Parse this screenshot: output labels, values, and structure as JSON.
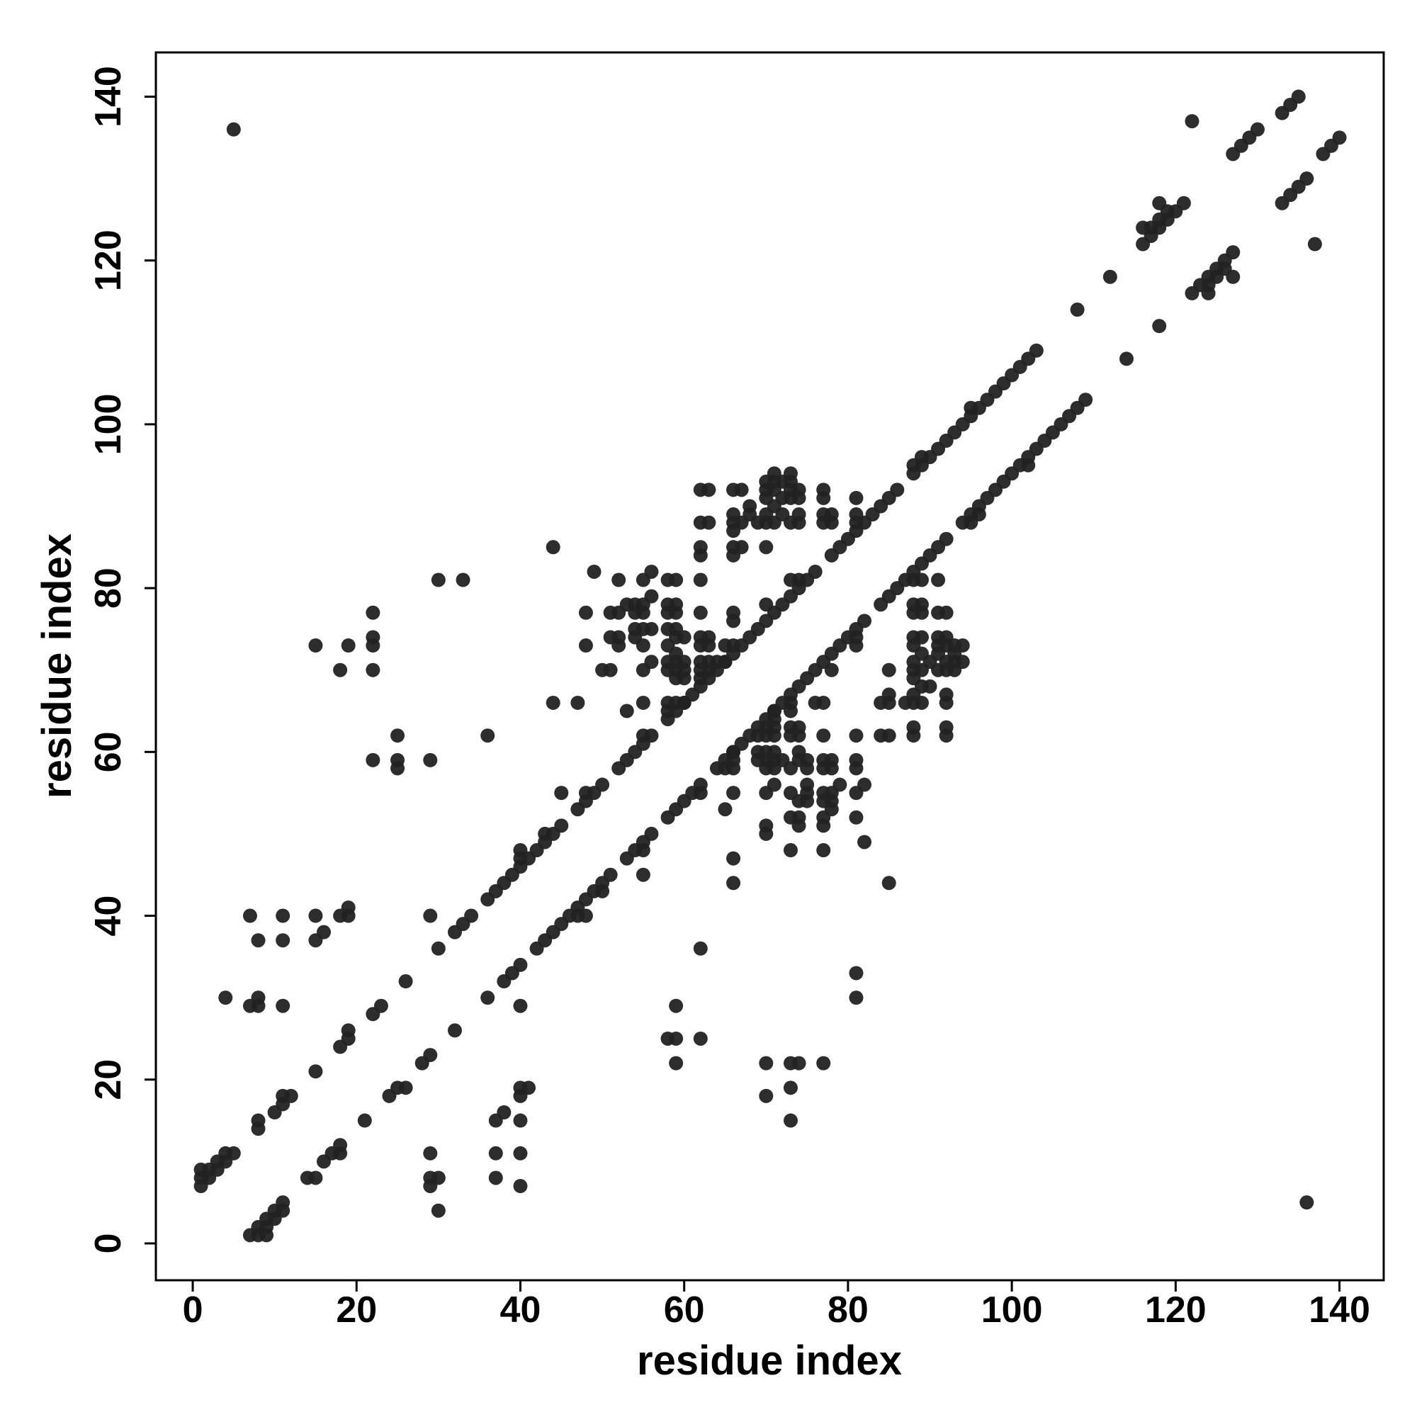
{
  "chart_data": {
    "type": "scatter",
    "xlabel": "residue index",
    "ylabel": "residue index",
    "xlim": [
      -4.5,
      145.4
    ],
    "ylim": [
      -4.5,
      145.4
    ],
    "xticks": [
      0,
      20,
      40,
      60,
      80,
      100,
      120,
      140
    ],
    "yticks": [
      0,
      20,
      40,
      60,
      80,
      100,
      120,
      140
    ],
    "series": [
      {
        "color": "#222222",
        "x": [
          1,
          1,
          1,
          2,
          2,
          3,
          3,
          4,
          4,
          5,
          8,
          8,
          10,
          11,
          11,
          12,
          15,
          18,
          19,
          19,
          22,
          23,
          26,
          30,
          32,
          33,
          34,
          36,
          37,
          38,
          39,
          40,
          40,
          40,
          41,
          42,
          43,
          43,
          44,
          45,
          45,
          47,
          48,
          48,
          49,
          50,
          52,
          53,
          54,
          55,
          55,
          56,
          58,
          59,
          60,
          61,
          62,
          63,
          64,
          65,
          66,
          67,
          68,
          69,
          70,
          71,
          72,
          73,
          74,
          75,
          76,
          78,
          79,
          80,
          81,
          82,
          83,
          84,
          85,
          86,
          88,
          88,
          89,
          89,
          90,
          91,
          92,
          93,
          94,
          95,
          95,
          96,
          97,
          98,
          99,
          100,
          101,
          102,
          103,
          108,
          112,
          116,
          116,
          117,
          117,
          118,
          118,
          118,
          119,
          119,
          120,
          121,
          122,
          127,
          128,
          129,
          130,
          133,
          134,
          135,
          5,
          30,
          33,
          15,
          19,
          18,
          22,
          22,
          22,
          22,
          25,
          22,
          25,
          25,
          29,
          36,
          44,
          49,
          44,
          47,
          7,
          8,
          11,
          11,
          15,
          15,
          16,
          18,
          19,
          19,
          4,
          7,
          8,
          8,
          11,
          29,
          48,
          52,
          48,
          51,
          52,
          51,
          52,
          50,
          53,
          54,
          55,
          56,
          56,
          55,
          54,
          55,
          56,
          55,
          55,
          56,
          53,
          55,
          58,
          58,
          59,
          58,
          59,
          58,
          59,
          58,
          59,
          60,
          58,
          59,
          60,
          58,
          59,
          60,
          58,
          59,
          58,
          60,
          62,
          62,
          63,
          62,
          62,
          62,
          62,
          62,
          63,
          62,
          63,
          62,
          63,
          62,
          63,
          62,
          63,
          66,
          67,
          66,
          66,
          67,
          66,
          66,
          67,
          66,
          68,
          68,
          69,
          70,
          70,
          70,
          70,
          70,
          70,
          71,
          71,
          71,
          71,
          71,
          72,
          72,
          72,
          73,
          73,
          73,
          73,
          73,
          74,
          74,
          74,
          74,
          77,
          77,
          77,
          77,
          78,
          78,
          81,
          81,
          81,
          66,
          65,
          66,
          64,
          65,
          70,
          73,
          74,
          51,
          52,
          54,
          54,
          55,
          59,
          59,
          60,
          66,
          59,
          7,
          8,
          9,
          8,
          9,
          9,
          10,
          10,
          11,
          11,
          14,
          15,
          16,
          17,
          18,
          18,
          21,
          24,
          25,
          26,
          28,
          29,
          32,
          36,
          38,
          39,
          40,
          42,
          43,
          44,
          45,
          46,
          47,
          48,
          47,
          48,
          49,
          50,
          50,
          51,
          55,
          53,
          54,
          55,
          55,
          56,
          58,
          59,
          60,
          61,
          62,
          62,
          64,
          65,
          66,
          67,
          68,
          69,
          70,
          71,
          72,
          73,
          74,
          75,
          76,
          77,
          78,
          79,
          80,
          81,
          82,
          84,
          85,
          86,
          87,
          88,
          89,
          90,
          91,
          92,
          94,
          95,
          95,
          96,
          96,
          97,
          98,
          99,
          100,
          101,
          102,
          102,
          103,
          104,
          105,
          106,
          107,
          108,
          109,
          114,
          118,
          122,
          124,
          123,
          124,
          124,
          125,
          127,
          125,
          126,
          126,
          127,
          137,
          133,
          134,
          135,
          136,
          138,
          139,
          140,
          136,
          81,
          81,
          73,
          73,
          70,
          77,
          74,
          73,
          70,
          62,
          59,
          59,
          58,
          59,
          62,
          85,
          82,
          66,
          66,
          40,
          37,
          40,
          37,
          40,
          37,
          38,
          40,
          40,
          41,
          30,
          29,
          29,
          30,
          29,
          40,
          77,
          81,
          73,
          77,
          77,
          74,
          74,
          70,
          78,
          78,
          81,
          82,
          79,
          77,
          75,
          75,
          75,
          73,
          70,
          71,
          65,
          66,
          81,
          78,
          78,
          77,
          77,
          75,
          75,
          73,
          74,
          74,
          71,
          71,
          71,
          70,
          69,
          70,
          66,
          66,
          65,
          66,
          92,
          88,
          88,
          85,
          84,
          81,
          77,
          74,
          74,
          73,
          73,
          71,
          71,
          70,
          70,
          69,
          92,
          92,
          92,
          89,
          88,
          88,
          87,
          85,
          85,
          84,
          90,
          89,
          88,
          89,
          88,
          85,
          91,
          92,
          93,
          94,
          93,
          92,
          90,
          88,
          93,
          91,
          89,
          94,
          93,
          92,
          91,
          88,
          92,
          91,
          89,
          88,
          92,
          91,
          89,
          88,
          89,
          88,
          91,
          89,
          88,
          77,
          73,
          73,
          71,
          71,
          78,
          81,
          81,
          70,
          73,
          74,
          77,
          78,
          70,
          72,
          69,
          76,
          81
        ],
        "values": [
          7,
          8,
          9,
          8,
          9,
          9,
          10,
          10,
          11,
          11,
          14,
          15,
          16,
          17,
          18,
          18,
          21,
          24,
          25,
          26,
          28,
          29,
          32,
          36,
          38,
          39,
          40,
          42,
          43,
          44,
          45,
          46,
          47,
          48,
          47,
          48,
          49,
          50,
          50,
          51,
          55,
          53,
          54,
          55,
          55,
          56,
          58,
          59,
          60,
          61,
          62,
          62,
          64,
          65,
          66,
          67,
          68,
          69,
          70,
          71,
          72,
          73,
          74,
          75,
          76,
          77,
          78,
          79,
          80,
          81,
          82,
          84,
          85,
          86,
          87,
          88,
          89,
          90,
          91,
          92,
          94,
          95,
          95,
          96,
          96,
          97,
          98,
          99,
          100,
          101,
          102,
          102,
          103,
          104,
          105,
          106,
          107,
          108,
          109,
          114,
          118,
          122,
          124,
          123,
          124,
          124,
          125,
          127,
          125,
          126,
          126,
          127,
          137,
          133,
          134,
          135,
          136,
          138,
          139,
          140,
          136,
          81,
          81,
          73,
          73,
          70,
          77,
          74,
          73,
          70,
          62,
          59,
          59,
          58,
          59,
          62,
          85,
          82,
          66,
          66,
          40,
          37,
          40,
          37,
          40,
          37,
          38,
          40,
          40,
          41,
          30,
          29,
          29,
          30,
          29,
          40,
          77,
          81,
          73,
          77,
          77,
          74,
          74,
          70,
          78,
          78,
          81,
          82,
          79,
          77,
          75,
          75,
          75,
          73,
          70,
          71,
          65,
          66,
          81,
          78,
          78,
          77,
          77,
          75,
          75,
          73,
          74,
          74,
          71,
          71,
          71,
          70,
          69,
          70,
          66,
          66,
          65,
          66,
          92,
          88,
          88,
          85,
          84,
          81,
          77,
          74,
          74,
          73,
          73,
          71,
          71,
          70,
          70,
          69,
          92,
          92,
          92,
          89,
          88,
          88,
          87,
          85,
          85,
          84,
          90,
          89,
          88,
          89,
          88,
          85,
          91,
          92,
          93,
          94,
          93,
          92,
          90,
          88,
          93,
          91,
          89,
          94,
          93,
          92,
          91,
          88,
          92,
          91,
          89,
          88,
          92,
          91,
          89,
          88,
          89,
          88,
          91,
          89,
          88,
          77,
          73,
          73,
          71,
          71,
          78,
          81,
          81,
          70,
          73,
          74,
          77,
          78,
          70,
          72,
          69,
          76,
          81,
          1,
          1,
          1,
          2,
          2,
          3,
          3,
          4,
          4,
          5,
          8,
          8,
          10,
          11,
          11,
          12,
          15,
          18,
          19,
          19,
          22,
          23,
          26,
          30,
          32,
          33,
          34,
          36,
          37,
          38,
          39,
          40,
          40,
          40,
          41,
          42,
          43,
          43,
          44,
          45,
          45,
          47,
          48,
          48,
          49,
          50,
          52,
          53,
          54,
          55,
          55,
          56,
          58,
          59,
          60,
          61,
          62,
          63,
          64,
          65,
          66,
          67,
          68,
          69,
          70,
          71,
          72,
          73,
          74,
          75,
          76,
          78,
          79,
          80,
          81,
          82,
          83,
          84,
          85,
          86,
          88,
          88,
          89,
          89,
          90,
          91,
          92,
          93,
          94,
          95,
          95,
          96,
          97,
          98,
          99,
          100,
          101,
          102,
          103,
          108,
          112,
          116,
          116,
          117,
          117,
          118,
          118,
          118,
          119,
          119,
          120,
          121,
          122,
          127,
          128,
          129,
          130,
          133,
          134,
          135,
          5,
          30,
          33,
          15,
          19,
          18,
          22,
          22,
          22,
          22,
          25,
          22,
          25,
          25,
          29,
          36,
          44,
          49,
          44,
          47,
          7,
          8,
          11,
          11,
          15,
          15,
          16,
          18,
          19,
          19,
          4,
          7,
          8,
          8,
          11,
          29,
          48,
          52,
          48,
          51,
          52,
          51,
          52,
          50,
          53,
          54,
          55,
          56,
          56,
          55,
          54,
          55,
          56,
          55,
          55,
          56,
          53,
          55,
          58,
          58,
          59,
          58,
          59,
          58,
          59,
          58,
          59,
          60,
          58,
          59,
          60,
          58,
          59,
          60,
          58,
          59,
          58,
          60,
          62,
          62,
          63,
          62,
          62,
          62,
          62,
          62,
          63,
          62,
          63,
          62,
          63,
          62,
          63,
          62,
          63,
          66,
          67,
          66,
          66,
          67,
          66,
          66,
          67,
          66,
          68,
          68,
          69,
          70,
          70,
          70,
          70,
          70,
          70,
          71,
          71,
          71,
          71,
          71,
          72,
          72,
          72,
          73,
          73,
          73,
          73,
          73,
          74,
          74,
          74,
          74,
          77,
          77,
          77,
          77,
          78,
          78,
          81,
          81,
          81,
          66,
          65,
          66,
          64,
          65,
          70,
          73,
          74,
          51,
          52,
          54,
          54,
          55,
          59,
          59,
          60,
          66,
          59
        ]
      }
    ]
  }
}
